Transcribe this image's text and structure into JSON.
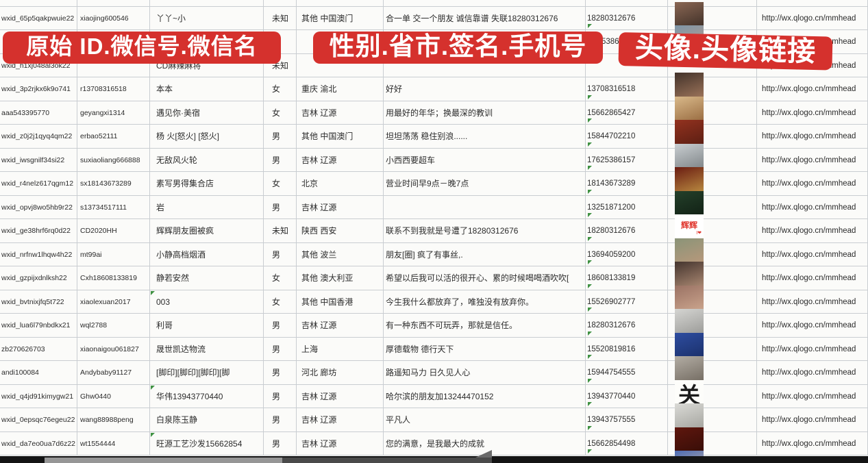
{
  "banners": {
    "left": "原始 ID.微信号.微信名",
    "middle": "性别.省市.签名.手机号",
    "right": "头像.头像链接",
    "background_color": "#d5312d",
    "text_color": "#ffffff"
  },
  "grid": {
    "link_text": "http://wx.qlogo.cn/mmhead",
    "gridline_color": "#c9cdd1",
    "flag_color": "#3f9142"
  },
  "rows": [
    {
      "id": "wxid_65p5qakpwuie22",
      "wid": "xiaojing600546",
      "name": "丫丫~小",
      "gender": "未知",
      "region": "其他 中国澳门",
      "sig": "合一单 交一个朋友 诚信靠谱 失联18280312676",
      "phone": "18280312676",
      "link": "http://wx.qlogo.cn/mmhead",
      "avatar": {
        "c1": "#8a6754",
        "c2": "#2f241e"
      }
    },
    {
      "id": "",
      "wid": "",
      "name": "",
      "gender": "",
      "region": "",
      "sig": "",
      "phone": "5386",
      "phone_fragment": true,
      "link": "http://wx.qlogo.cn/mmhead",
      "avatar": {
        "c1": "#7d95a8",
        "c2": "#c7a083"
      }
    },
    {
      "id": "wxid_h1xj048al3ok22",
      "wid": "",
      "name": "CD麻辣麻将",
      "gender": "未知",
      "region": "",
      "sig": "",
      "phone": "",
      "link": "http://wx.qlogo.cn/mmhead",
      "avatar": null
    },
    {
      "id": "wxid_3p2rjkx6k9o741",
      "wid": "r13708316518",
      "name": "本本",
      "gender": "女",
      "region": "重庆 渝北",
      "sig": "好好",
      "phone": "13708316518",
      "link": "http://wx.qlogo.cn/mmhead",
      "avatar": {
        "c1": "#42322a",
        "c2": "#b08264"
      }
    },
    {
      "id": "aaa543395770",
      "wid": "geyangxi1314",
      "name": "遇见你·美宿",
      "gender": "女",
      "region": "吉林 辽源",
      "sig": "用最好的年华；换最深的教训",
      "phone": "15662865427",
      "link": "http://wx.qlogo.cn/mmhead",
      "avatar": {
        "c1": "#d9b98a",
        "c2": "#8a5a30"
      }
    },
    {
      "id": "wxid_z0j2j1qyq4qm22",
      "wid": "erbao52111",
      "name": "杨 火[怒火] [怒火]",
      "gender": "男",
      "region": "其他 中国澳门",
      "sig": "坦坦荡荡 稳住别浪......",
      "phone": "15844702210",
      "link": "http://wx.qlogo.cn/mmhead",
      "avatar": {
        "c1": "#93321f",
        "c2": "#4f1a10"
      }
    },
    {
      "id": "wxid_iwsgnilf34si22",
      "wid": "suxiaoliang666888",
      "name": "无敌风火轮",
      "gender": "男",
      "region": "吉林 辽源",
      "sig": "小西西要超车",
      "phone": "17625386157",
      "link": "http://wx.qlogo.cn/mmhead",
      "avatar": {
        "c1": "#c9ced1",
        "c2": "#6f7578"
      }
    },
    {
      "id": "wxid_r4nelz617qgm12",
      "wid": "sx18143673289",
      "name": "素写男得集合店",
      "gender": "女",
      "region": "北京",
      "sig": "营业时间早9点－晚7点",
      "phone": "18143673289",
      "link": "http://wx.qlogo.cn/mmhead",
      "avatar": {
        "c1": "#6a1c12",
        "c2": "#caa24a"
      }
    },
    {
      "id": "wxid_opvj8wo5hb9r22",
      "wid": "s13734517111",
      "name": "岩",
      "gender": "男",
      "region": "吉林 辽源",
      "sig": "",
      "phone": "13251871200",
      "link": "http://wx.qlogo.cn/mmhead",
      "avatar": {
        "c1": "#24402a",
        "c2": "#0d1a10"
      }
    },
    {
      "id": "wxid_ge38hrf6rq0d22",
      "wid": "CD2020HH",
      "name": "辉辉朋友圈被疯",
      "gender": "未知",
      "region": "陕西 西安",
      "sig": "联系不到我就是号遭了18280312676",
      "phone": "18280312676",
      "link": "http://wx.qlogo.cn/mmhead",
      "avatar": {
        "bg": "#ffffff",
        "text": "辉辉",
        "sub": "I❤",
        "tc": "#e0382f"
      }
    },
    {
      "id": "wxid_nrfnw1lhqw4h22",
      "wid": "mt99ai",
      "name": "小静高档烟酒",
      "gender": "男",
      "region": "其他 波兰",
      "sig": "朋友[圈] 疯了有事丝,.",
      "phone": "13694059200",
      "link": "http://wx.qlogo.cn/mmhead",
      "avatar": {
        "c1": "#8a9478",
        "c2": "#c2997c"
      }
    },
    {
      "id": "wxid_gzpijxdnlksh22",
      "wid": "Cxh18608133819",
      "name": "静若安然",
      "gender": "女",
      "region": "其他 澳大利亚",
      "sig": "希望以后我可以活的很开心、累的时候喝喝酒吹吹[",
      "phone": "18608133819",
      "link": "http://wx.qlogo.cn/mmhead",
      "avatar": {
        "c1": "#44342e",
        "c2": "#c09a80"
      }
    },
    {
      "id": "wxid_bvtnixjfq5t722",
      "wid": "xiaolexuan2017",
      "name": "003",
      "gender": "女",
      "region": "其他 中国香港",
      "sig": "今生我什么都放弃了，唯独没有放弃你。",
      "phone": "15526902777",
      "link": "http://wx.qlogo.cn/mmhead",
      "avatar": {
        "c1": "#9a7264",
        "c2": "#d6b096"
      },
      "name_flag": true
    },
    {
      "id": "wxid_lua6l79nbdkx21",
      "wid": "wql2788",
      "name": "利哥",
      "gender": "男",
      "region": "吉林 辽源",
      "sig": "有一种东西不可玩弄，那就是信任。",
      "phone": "18280312676",
      "link": "http://wx.qlogo.cn/mmhead",
      "avatar": {
        "c1": "#d5d5d2",
        "c2": "#8f8f8c"
      }
    },
    {
      "id": "zb270626703",
      "wid": "xiaonaigou061827",
      "name": "晟世凯达物流",
      "gender": "男",
      "region": "上海",
      "sig": "厚德载物 德行天下",
      "phone": "15520819816",
      "link": "http://wx.qlogo.cn/mmhead",
      "avatar": {
        "c1": "#2e4da0",
        "c2": "#16295e"
      }
    },
    {
      "id": "andi100084",
      "wid": "Andybaby91127",
      "name": "[脚印][脚印][脚印][脚",
      "gender": "男",
      "region": "河北 廊坊",
      "sig": "路遥知马力 日久见人心",
      "phone": "15944754555",
      "link": "http://wx.qlogo.cn/mmhead",
      "avatar": {
        "c1": "#b3ada4",
        "c2": "#675f55"
      }
    },
    {
      "id": "wxid_q4jd91kimygw21",
      "wid": "Ghw0440",
      "name": "华伟13943770440",
      "gender": "男",
      "region": "吉林 辽源",
      "sig": "哈尔滨的朋友加13244470152",
      "phone": "13943770440",
      "link": "http://wx.qlogo.cn/mmhead",
      "avatar": {
        "bg": "#fdfdfa",
        "text": "关",
        "tc": "#1c1c1c",
        "big": true
      },
      "name_flag": true
    },
    {
      "id": "wxid_0epsqc76egeu22",
      "wid": "wang88988peng",
      "name": "白泉陈玉静",
      "gender": "男",
      "region": "吉林 辽源",
      "sig": "平凡人",
      "phone": "13943757555",
      "link": "http://wx.qlogo.cn/mmhead",
      "avatar": {
        "c1": "#dadad6",
        "c2": "#9a9a94"
      }
    },
    {
      "id": "wxid_da7eo0ua7d6z22",
      "wid": "wt1554444",
      "name": "旺源工艺沙发15662854",
      "gender": "男",
      "region": "吉林 辽源",
      "sig": "您的满意，是我最大的成就",
      "phone": "15662854498",
      "link": "http://wx.qlogo.cn/mmhead",
      "avatar": {
        "c1": "#5f170e",
        "c2": "#2e0b06",
        "strip": "中国加油"
      },
      "name_flag": true
    }
  ],
  "partial_bottom_avatar": {
    "c1": "#4d6cb4",
    "c2": "#e4c49e"
  }
}
